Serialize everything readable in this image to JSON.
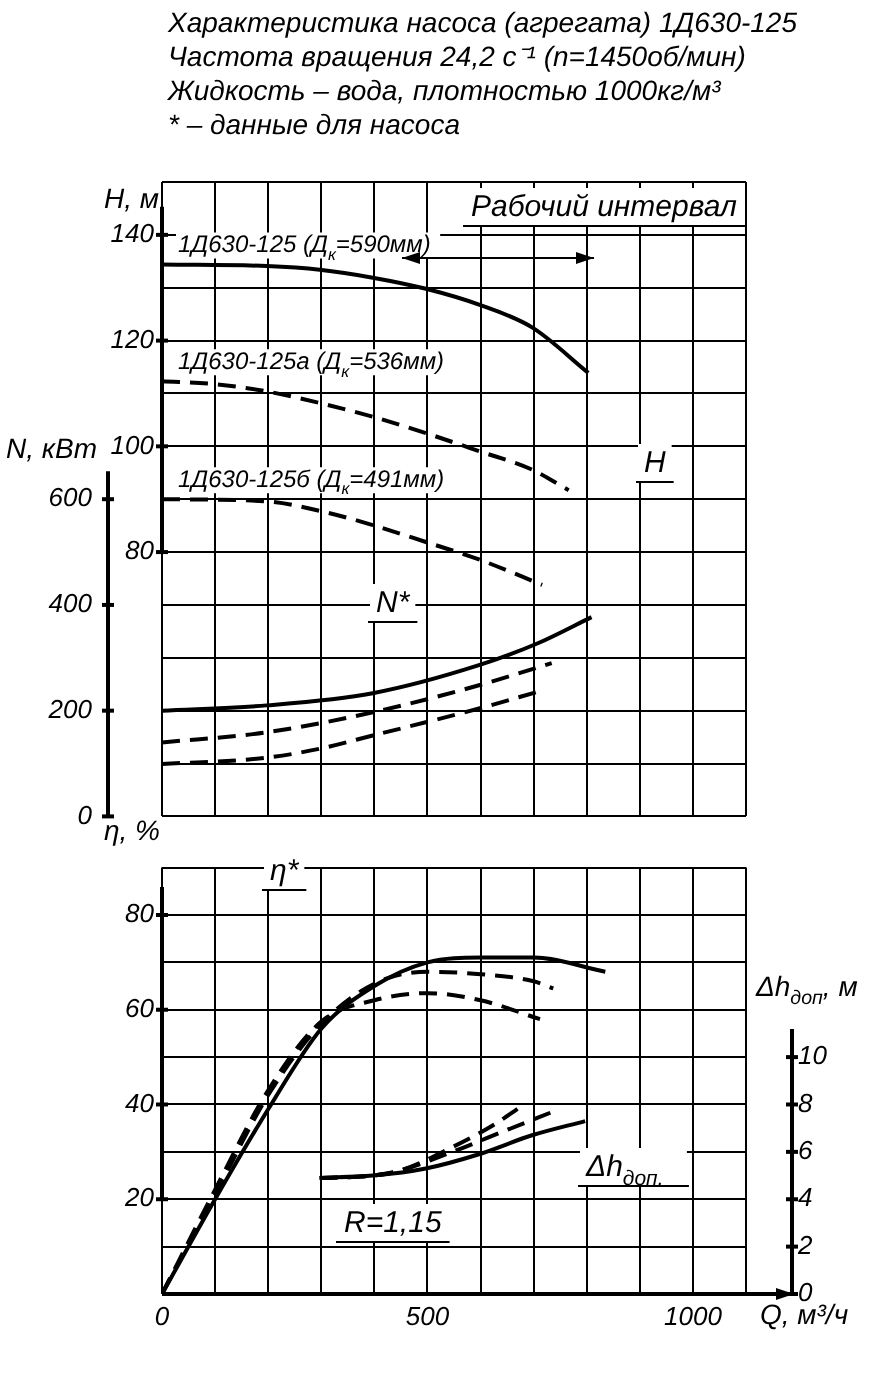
{
  "chart_data": [
    {
      "type": "line",
      "title": "Характеристика насоса (агрегата) 1Д630-125",
      "subtitle": "Частота вращения 24,2 с⁻¹ (n=1450об/мин)\nЖидкость – вода, плотностью 1000кг/м³\n* – данные для насоса",
      "ylabel": "H, м",
      "y2label": "N, кВт",
      "xlim": [
        0,
        1100
      ],
      "xticks": [
        0,
        100,
        200,
        300,
        400,
        500,
        600,
        700,
        800,
        900,
        1000,
        1100
      ],
      "tick_labels": "y",
      "ylim": [
        30,
        150
      ],
      "yticks": [
        {
          "value": 30,
          "label": null
        },
        {
          "value": 40,
          "label": null
        },
        {
          "value": 50,
          "label": null
        },
        {
          "value": 60,
          "label": null
        },
        {
          "value": 70,
          "label": null
        },
        80,
        {
          "value": 90,
          "label": null
        },
        100,
        {
          "value": 110,
          "label": null
        },
        120,
        {
          "value": 130,
          "label": null
        },
        140,
        {
          "value": 150,
          "label": null
        }
      ],
      "y2lim": [
        0,
        1200
      ],
      "y2ticks": [
        0,
        200,
        400,
        600
      ],
      "grid": true,
      "legend": false,
      "marker": "none",
      "series": [
        {
          "name": "1Д630-125 (Д$_{к}$=590мм)",
          "color": "#000000",
          "line_style": "solid",
          "x": [
            0,
            197,
            297,
            397,
            497,
            597,
            697,
            803
          ],
          "values": [
            134.4,
            134.1,
            133.4,
            131.9,
            129.8,
            126.8,
            122.5,
            113.9
          ]
        },
        {
          "name": "1Д630-125а (Д$_{к}$=536мм)",
          "color": "#000000",
          "line_style": "dashed",
          "x": [
            0,
            97,
            197,
            297,
            397,
            497,
            597,
            697,
            766
          ],
          "values": [
            112.3,
            111.8,
            110.4,
            108.2,
            105.6,
            102.5,
            99.1,
            95.6,
            91.7
          ]
        },
        {
          "name": "1Д630-125б (Д$_{к}$=491мм)",
          "color": "#000000",
          "line_style": "dashed",
          "x": [
            0,
            197,
            297,
            397,
            497,
            597,
            716
          ],
          "values": [
            90,
            89.6,
            87.8,
            85.1,
            81.9,
            78.6,
            73.8
          ]
        },
        {
          "color": "#000000",
          "line_style": "solid",
          "axis": "y2",
          "x": [
            0,
            197,
            397,
            597,
            709,
            809
          ],
          "values": [
            200,
            210,
            233,
            286,
            328,
            377
          ]
        },
        {
          "color": "#000000",
          "line_style": "dashed",
          "axis": "y2",
          "x": [
            0,
            197,
            397,
            597,
            734
          ],
          "values": [
            140,
            159,
            197,
            248,
            290
          ]
        },
        {
          "color": "#000000",
          "line_style": "dashed",
          "axis": "y2",
          "x": [
            0,
            197,
            297,
            397,
            597,
            709
          ],
          "values": [
            99,
            111,
            128,
            153,
            204,
            236
          ]
        }
      ],
      "annotations": [
        "Рабочий интервал",
        "H",
        "N*"
      ]
    },
    {
      "type": "line",
      "xlabel": "Q, м³/ч",
      "ylabel": "η, %",
      "y2label": "Δh$_{доп}$, м",
      "xlim": [
        0,
        1100
      ],
      "xticks": [
        0,
        {
          "value": 100,
          "label": null
        },
        {
          "value": 200,
          "label": null
        },
        {
          "value": 300,
          "label": null
        },
        {
          "value": 400,
          "label": null
        },
        500,
        {
          "value": 600,
          "label": null
        },
        {
          "value": 700,
          "label": null
        },
        {
          "value": 800,
          "label": null
        },
        {
          "value": 900,
          "label": null
        },
        1000,
        {
          "value": 1100,
          "label": null
        }
      ],
      "ylim": [
        0,
        90
      ],
      "yticks": [
        {
          "value": 0,
          "label": null
        },
        {
          "value": 10,
          "label": null
        },
        20,
        {
          "value": 30,
          "label": null
        },
        40,
        {
          "value": 50,
          "label": null
        },
        60,
        {
          "value": 70,
          "label": null
        },
        80,
        {
          "value": 90,
          "label": null
        }
      ],
      "y2lim": [
        0,
        18
      ],
      "y2ticks": [
        0,
        2,
        4,
        6,
        8,
        10
      ],
      "grid": true,
      "legend": false,
      "marker": "none",
      "series": [
        {
          "color": "#000000",
          "line_style": "solid",
          "x": [
            0,
            100,
            200,
            300,
            400,
            500,
            600,
            700,
            835
          ],
          "values": [
            0,
            20,
            39,
            56,
            65,
            70,
            71,
            71,
            68
          ]
        },
        {
          "color": "#000000",
          "line_style": "dashed",
          "x": [
            0,
            100,
            200,
            300,
            400,
            500,
            600,
            700,
            737
          ],
          "values": [
            0,
            21,
            42,
            57,
            65.5,
            68,
            67.5,
            66,
            64.5
          ]
        },
        {
          "color": "#000000",
          "line_style": "dashed",
          "x": [
            0,
            100,
            200,
            300,
            400,
            500,
            600,
            712
          ],
          "values": [
            0,
            22,
            43,
            57.5,
            62,
            63.5,
            62,
            58
          ]
        },
        {
          "color": "#000000",
          "line_style": "solid",
          "axis": "y2",
          "x": [
            297,
            397,
            497,
            597,
            697,
            797
          ],
          "values": [
            4.9,
            5,
            5.3,
            5.9,
            6.7,
            7.3
          ]
        },
        {
          "color": "#000000",
          "line_style": "dashed",
          "axis": "y2",
          "x": [
            297,
            397,
            447,
            547,
            647,
            737
          ],
          "values": [
            4.9,
            5,
            5.2,
            6,
            6.9,
            7.7
          ]
        },
        {
          "color": "#000000",
          "line_style": "dashed",
          "axis": "y2",
          "x": [
            297,
            397,
            447,
            547,
            622,
            675
          ],
          "values": [
            4.9,
            5,
            5.2,
            6.2,
            7.1,
            7.9
          ]
        }
      ],
      "annotations": [
        "η*",
        "Δh$_{доп.}$",
        "R=1,15"
      ]
    }
  ]
}
